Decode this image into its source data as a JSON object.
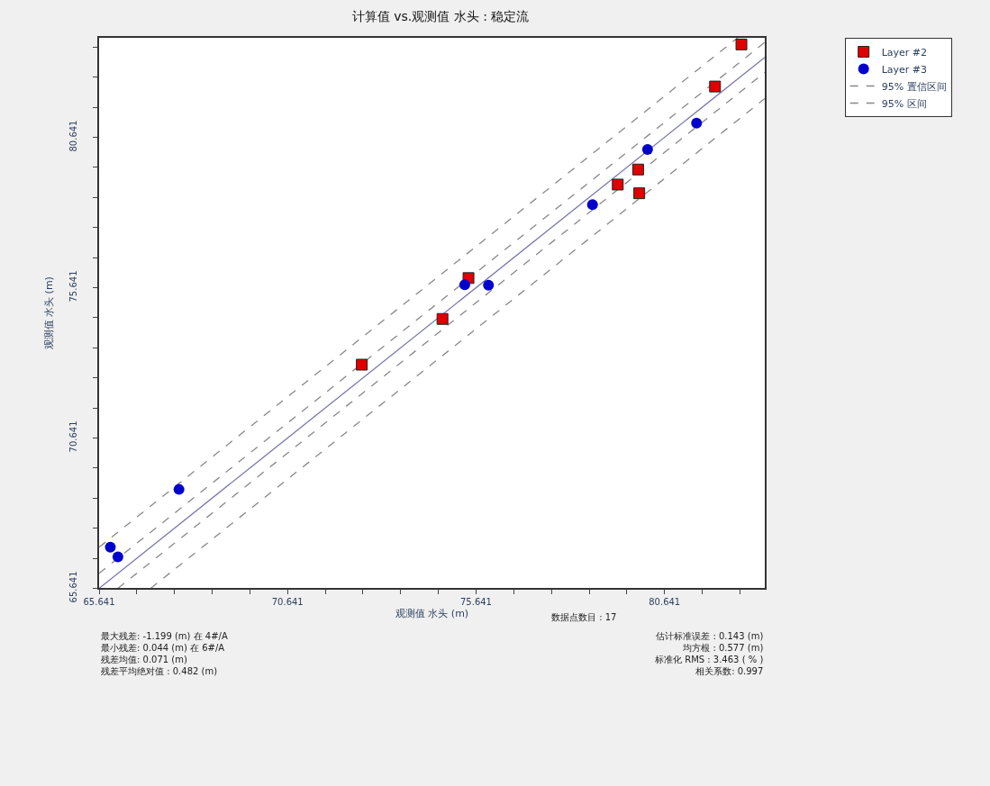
{
  "chart_data": {
    "type": "scatter",
    "title": "计算值 vs.观测值 水头 : 稳定流",
    "xlabel": "观测值 水头 (m)",
    "ylabel": "观测值 水头 (m)",
    "xlim": [
      65.641,
      83.3
    ],
    "ylim": [
      65.641,
      83.95
    ],
    "xticks": [
      65.641,
      {
        "value": 66.641,
        "label": null
      },
      {
        "value": 67.641,
        "label": null
      },
      {
        "value": 68.641,
        "label": null
      },
      {
        "value": 69.641,
        "label": null
      },
      70.641,
      {
        "value": 71.641,
        "label": null
      },
      {
        "value": 72.641,
        "label": null
      },
      {
        "value": 73.641,
        "label": null
      },
      {
        "value": 74.641,
        "label": null
      },
      75.641,
      {
        "value": 76.641,
        "label": null
      },
      {
        "value": 77.641,
        "label": null
      },
      {
        "value": 78.641,
        "label": null
      },
      {
        "value": 79.641,
        "label": null
      },
      80.641,
      {
        "value": 81.641,
        "label": null
      },
      {
        "value": 82.641,
        "label": null
      }
    ],
    "yticks": [
      65.641,
      {
        "value": 66.641,
        "label": null
      },
      {
        "value": 67.641,
        "label": null
      },
      {
        "value": 68.641,
        "label": null
      },
      {
        "value": 69.641,
        "label": null
      },
      70.641,
      {
        "value": 71.641,
        "label": null
      },
      {
        "value": 72.641,
        "label": null
      },
      {
        "value": 73.641,
        "label": null
      },
      {
        "value": 74.641,
        "label": null
      },
      75.641,
      {
        "value": 76.641,
        "label": null
      },
      {
        "value": 77.641,
        "label": null
      },
      {
        "value": 78.641,
        "label": null
      },
      {
        "value": 79.641,
        "label": null
      },
      80.641,
      {
        "value": 81.641,
        "label": null
      },
      {
        "value": 82.641,
        "label": null
      },
      {
        "value": 83.641,
        "label": null
      }
    ],
    "legend": "top right",
    "series": [
      {
        "type": "line",
        "color": "#7777aa",
        "marker": "none",
        "line_style": "solid",
        "x": [
          65.641,
          83.3
        ],
        "values": [
          65.641,
          83.3
        ]
      },
      {
        "name": "95% 置信区间",
        "type": "line",
        "color": "#888888",
        "marker": "none",
        "line_style": "dashed",
        "x": [
          65.641,
          83.3
        ],
        "values": [
          66.14,
          83.8
        ]
      },
      {
        "type": "line",
        "color": "#888888",
        "marker": "none",
        "line_style": "dashed",
        "x": [
          66.14,
          83.3
        ],
        "values": [
          65.641,
          82.8
        ]
      },
      {
        "name": "95% 区间",
        "type": "line",
        "color": "#888888",
        "marker": "none",
        "line_style": "dashed",
        "x": [
          65.641,
          82.58
        ],
        "values": [
          67.01,
          83.95
        ]
      },
      {
        "type": "line",
        "color": "#888888",
        "marker": "none",
        "line_style": "dashed",
        "x": [
          67.01,
          83.3
        ],
        "values": [
          65.641,
          81.93
        ]
      },
      {
        "name": "Layer #2",
        "color": "#e00000",
        "marker": "square",
        "x": [
          82.68,
          81.98,
          79.94,
          79.4,
          79.97,
          75.44,
          74.75,
          72.61
        ],
        "values": [
          83.73,
          82.33,
          79.57,
          79.07,
          78.78,
          75.96,
          74.6,
          73.08
        ]
      },
      {
        "name": "Layer #3",
        "color": "#0000cc",
        "marker": "circle",
        "x": [
          81.49,
          80.19,
          78.73,
          75.34,
          75.97,
          67.76,
          65.94,
          66.14
        ],
        "values": [
          81.11,
          80.24,
          78.4,
          75.74,
          75.72,
          68.93,
          67.01,
          66.69
        ]
      }
    ],
    "annotations": [
      "最大残差: -1.199 (m) 在 4#/A\n最小残差: 0.044 (m) 在 6#/A\n残差均值: 0.071 (m)\n残差平均绝对值 : 0.482 (m)",
      "数据点数目 : 17",
      "估计标准误差 : 0.143 (m)\n均方根 : 0.577 (m)\n标准化 RMS : 3.463 ( % )\n相关系数: 0.997"
    ]
  }
}
